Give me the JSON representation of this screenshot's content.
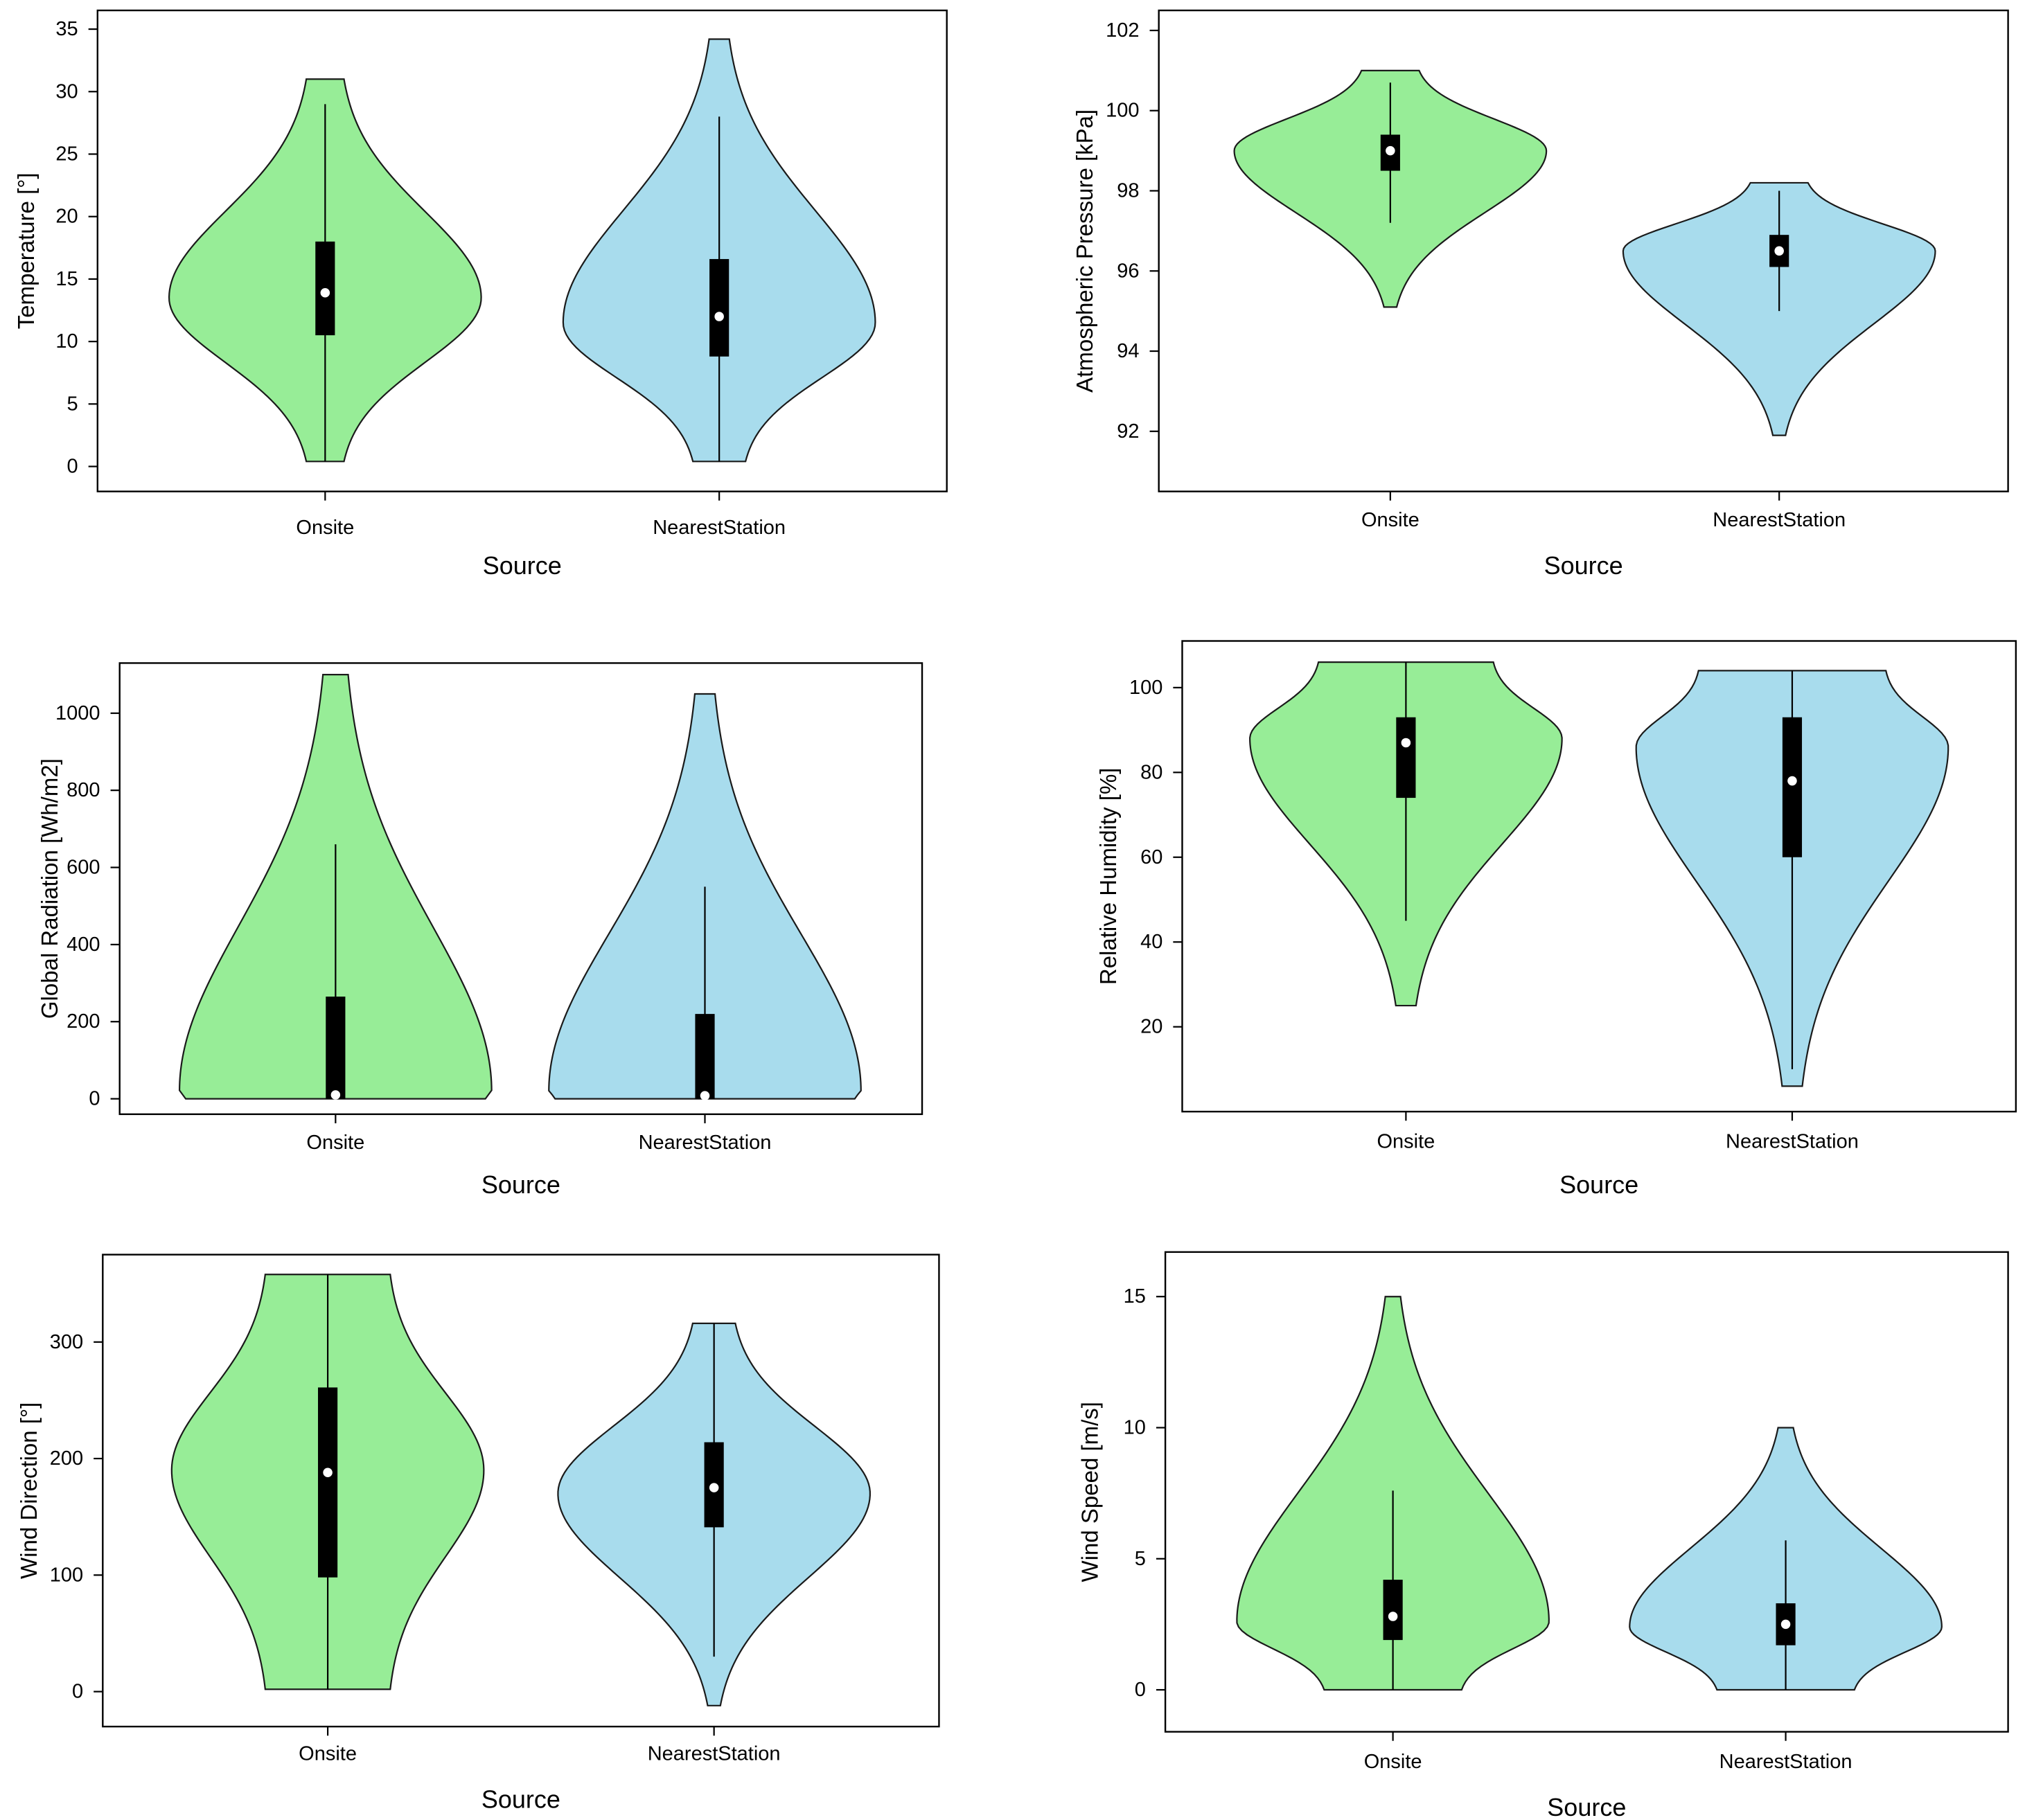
{
  "figure": {
    "colors": {
      "onsite": "#97ed97",
      "nearest": "#a8dced",
      "box": "#000000",
      "median": "#ffffff"
    }
  },
  "chart_data": [
    {
      "type": "violin",
      "id": "temperature",
      "xlabel": "Source",
      "ylabel": "Temperature [°]",
      "categories": [
        "Onsite",
        "NearestStation"
      ],
      "ylim": [
        -2,
        36.5
      ],
      "yticks": [
        0,
        5,
        10,
        15,
        20,
        25,
        30,
        35
      ],
      "series": [
        {
          "name": "Onsite",
          "min": 0.4,
          "max": 31,
          "whisker_low": 0.4,
          "whisker_high": 29,
          "q1": 10.5,
          "median": 13.9,
          "q3": 18,
          "mode": 13.5,
          "max_halfwidth": 12,
          "top_halfwidth": 1.0,
          "bottom_halfwidth": 1.0,
          "color": "#97ed97"
        },
        {
          "name": "NearestStation",
          "min": 0.4,
          "max": 34.2,
          "whisker_low": 0.4,
          "whisker_high": 28,
          "q1": 8.8,
          "median": 12,
          "q3": 16.6,
          "mode": 11.5,
          "max_halfwidth": 12,
          "top_halfwidth": 0.3,
          "bottom_halfwidth": 1.6,
          "color": "#a8dced"
        }
      ]
    },
    {
      "type": "violin",
      "id": "pressure",
      "xlabel": "Source",
      "ylabel": "Atmospheric Pressure [kPa]",
      "categories": [
        "Onsite",
        "NearestStation"
      ],
      "ylim": [
        90.5,
        102.5
      ],
      "yticks": [
        92,
        94,
        96,
        98,
        100,
        102
      ],
      "series": [
        {
          "name": "Onsite",
          "min": 95.1,
          "max": 101,
          "whisker_low": 97.2,
          "whisker_high": 100.7,
          "q1": 98.5,
          "median": 99,
          "q3": 99.4,
          "mode": 99,
          "max_halfwidth": 12,
          "top_halfwidth": 1.8,
          "bottom_halfwidth": 0,
          "color": "#97ed97"
        },
        {
          "name": "NearestStation",
          "min": 91.9,
          "max": 98.2,
          "whisker_low": 95,
          "whisker_high": 98,
          "q1": 96.1,
          "median": 96.5,
          "q3": 96.9,
          "mode": 96.5,
          "max_halfwidth": 12,
          "top_halfwidth": 1.8,
          "bottom_halfwidth": 0,
          "color": "#a8dced"
        }
      ]
    },
    {
      "type": "violin",
      "id": "radiation",
      "xlabel": "Source",
      "ylabel": "Global Radiation [Wh/m2]",
      "categories": [
        "Onsite",
        "NearestStation"
      ],
      "ylim": [
        -40,
        1130
      ],
      "yticks": [
        0,
        200,
        400,
        600,
        800,
        1000
      ],
      "series": [
        {
          "name": "Onsite",
          "min": 0,
          "max": 1100,
          "whisker_low": 0,
          "whisker_high": 660,
          "q1": 0,
          "median": 10,
          "q3": 265,
          "mode": 20,
          "max_halfwidth": 12,
          "top_halfwidth": 0.5,
          "bottom_halfwidth": 11.5,
          "color": "#97ed97"
        },
        {
          "name": "NearestStation",
          "min": 0,
          "max": 1050,
          "whisker_low": 0,
          "whisker_high": 550,
          "q1": 0,
          "median": 8,
          "q3": 220,
          "mode": 20,
          "max_halfwidth": 12,
          "top_halfwidth": 0.3,
          "bottom_halfwidth": 11.5,
          "color": "#a8dced"
        }
      ]
    },
    {
      "type": "violin",
      "id": "humidity",
      "xlabel": "Source",
      "ylabel": "Relative Humidity [%]",
      "categories": [
        "Onsite",
        "NearestStation"
      ],
      "ylim": [
        0,
        111
      ],
      "yticks": [
        20,
        40,
        60,
        80,
        100
      ],
      "series": [
        {
          "name": "Onsite",
          "min": 25,
          "max": 106,
          "whisker_low": 45,
          "whisker_high": 106,
          "q1": 74,
          "median": 87,
          "q3": 93,
          "mode": 88,
          "max_halfwidth": 12,
          "top_halfwidth": 6.5,
          "bottom_halfwidth": 0.3,
          "color": "#97ed97"
        },
        {
          "name": "NearestStation",
          "min": 6,
          "max": 104,
          "whisker_low": 10,
          "whisker_high": 104,
          "q1": 60,
          "median": 78,
          "q3": 93,
          "mode": 86,
          "max_halfwidth": 12,
          "top_halfwidth": 7,
          "bottom_halfwidth": 0.3,
          "color": "#a8dced"
        }
      ]
    },
    {
      "type": "violin",
      "id": "direction",
      "xlabel": "Source",
      "ylabel": "Wind Direction [°]",
      "categories": [
        "Onsite",
        "NearestStation"
      ],
      "ylim": [
        -30,
        375
      ],
      "yticks": [
        0,
        100,
        200,
        300
      ],
      "series": [
        {
          "name": "Onsite",
          "min": 2,
          "max": 358,
          "whisker_low": 2,
          "whisker_high": 358,
          "q1": 98,
          "median": 188,
          "q3": 261,
          "mode": 190,
          "max_halfwidth": 12,
          "top_halfwidth": 4.5,
          "bottom_halfwidth": 4.5,
          "color": "#97ed97"
        },
        {
          "name": "NearestStation",
          "min": -12,
          "max": 316,
          "whisker_low": 30,
          "whisker_high": 316,
          "q1": 141,
          "median": 175,
          "q3": 214,
          "mode": 170,
          "max_halfwidth": 12,
          "top_halfwidth": 1.2,
          "bottom_halfwidth": 0,
          "color": "#a8dced"
        }
      ]
    },
    {
      "type": "violin",
      "id": "speed",
      "xlabel": "Source",
      "ylabel": "Wind Speed [m/s]",
      "categories": [
        "Onsite",
        "NearestStation"
      ],
      "ylim": [
        -1.6,
        16.7
      ],
      "yticks": [
        0,
        5,
        10,
        15
      ],
      "series": [
        {
          "name": "Onsite",
          "min": 0,
          "max": 15,
          "whisker_low": 0,
          "whisker_high": 7.6,
          "q1": 1.9,
          "median": 2.8,
          "q3": 4.2,
          "mode": 2.6,
          "max_halfwidth": 12,
          "top_halfwidth": 0.1,
          "bottom_halfwidth": 5,
          "color": "#97ed97"
        },
        {
          "name": "NearestStation",
          "min": 0,
          "max": 10,
          "whisker_low": 0,
          "whisker_high": 5.7,
          "q1": 1.7,
          "median": 2.5,
          "q3": 3.3,
          "mode": 2.4,
          "max_halfwidth": 12,
          "top_halfwidth": 0.1,
          "bottom_halfwidth": 5,
          "color": "#a8dced"
        }
      ]
    }
  ]
}
